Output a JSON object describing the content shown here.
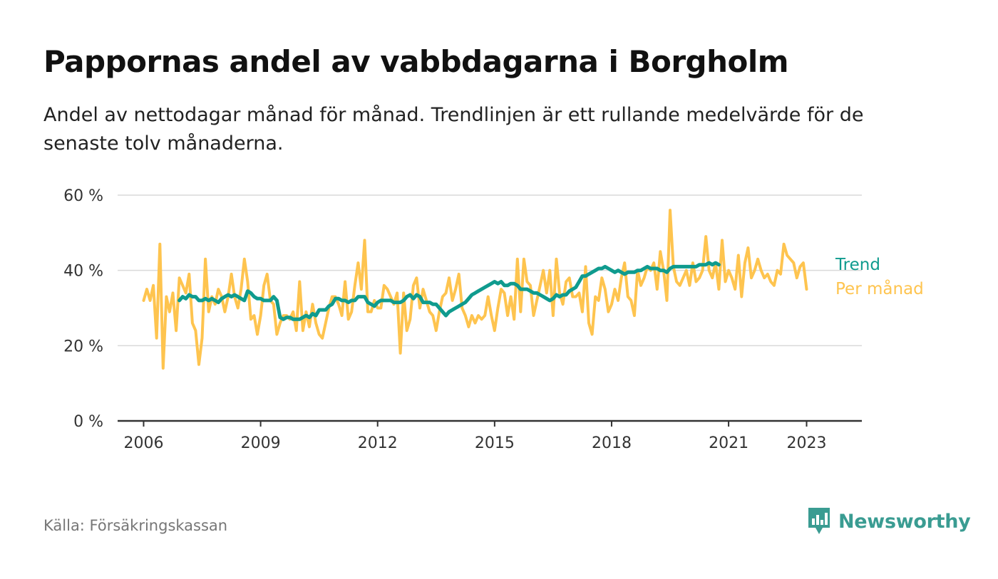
{
  "title": "Pappornas andel av vabbdagarna i Borgholm",
  "subtitle": "Andel av nettodagar månad för månad. Trendlinjen är ett rullande medelvärde för de senaste tolv månaderna.",
  "source": "Källa: Försäkringskassan",
  "brand": {
    "name": "Newsworthy",
    "color": "#3a9c92",
    "icon": "newsworthy-logo-icon"
  },
  "chart_data": {
    "type": "line",
    "x_ticks": [
      "2006",
      "2009",
      "2012",
      "2015",
      "2018",
      "2021",
      "2023"
    ],
    "y_ticks": [
      "0 %",
      "20 %",
      "40 %",
      "60 %"
    ],
    "ylim": [
      0,
      60
    ],
    "xlim": [
      "2005-05",
      "2024-06"
    ],
    "grid": true,
    "legend": "inline-right",
    "series": [
      {
        "name": "Per månad",
        "color": "#fec44f",
        "start": "2006-01",
        "values": [
          32,
          35,
          32,
          36,
          22,
          47,
          14,
          33,
          29,
          34,
          24,
          38,
          36,
          34,
          39,
          26,
          24,
          15,
          22,
          43,
          29,
          33,
          31,
          35,
          33,
          29,
          33,
          39,
          33,
          30,
          35,
          43,
          37,
          27,
          28,
          23,
          28,
          36,
          39,
          32,
          31,
          23,
          26,
          28,
          28,
          27,
          29,
          24,
          37,
          24,
          29,
          25,
          31,
          26,
          23,
          22,
          26,
          30,
          33,
          33,
          31,
          28,
          37,
          27,
          29,
          36,
          42,
          35,
          48,
          29,
          29,
          32,
          30,
          30,
          36,
          35,
          33,
          31,
          34,
          18,
          34,
          24,
          27,
          36,
          38,
          30,
          35,
          32,
          29,
          28,
          24,
          29,
          33,
          34,
          38,
          32,
          35,
          39,
          30,
          28,
          25,
          28,
          26,
          28,
          27,
          28,
          33,
          28,
          24,
          30,
          35,
          34,
          28,
          33,
          27,
          43,
          29,
          43,
          37,
          36,
          28,
          32,
          36,
          40,
          34,
          40,
          28,
          43,
          34,
          31,
          37,
          38,
          33,
          33,
          34,
          29,
          41,
          26,
          23,
          33,
          32,
          38,
          35,
          29,
          31,
          35,
          32,
          38,
          42,
          33,
          32,
          28,
          40,
          36,
          38,
          41,
          40,
          42,
          35,
          45,
          40,
          32,
          56,
          41,
          37,
          36,
          38,
          40,
          36,
          42,
          37,
          38,
          40,
          49,
          40,
          38,
          42,
          35,
          48,
          37,
          40,
          38,
          35,
          44,
          33,
          42,
          46,
          38,
          40,
          43,
          40,
          38,
          39,
          37,
          36,
          40,
          39,
          47,
          44,
          43,
          42,
          38,
          41,
          42,
          35
        ]
      },
      {
        "name": "Trend",
        "color": "#0f9b8e",
        "start": "2006-12",
        "values": [
          32,
          33,
          32.5,
          33.5,
          33,
          33,
          32,
          32,
          32.5,
          32,
          32.5,
          32,
          31.5,
          32.5,
          33,
          33.5,
          33,
          33.5,
          33,
          32.5,
          32,
          34.5,
          34,
          33,
          32.5,
          32.5,
          32,
          32,
          32,
          33,
          32,
          27.5,
          27,
          27.5,
          27.5,
          27,
          27,
          27,
          27.5,
          28,
          27.5,
          28.5,
          28,
          29.5,
          29.5,
          29.5,
          30.5,
          31,
          32.5,
          32.5,
          32,
          32,
          31.5,
          32,
          32,
          33,
          33,
          33,
          31.5,
          31,
          30.5,
          31.5,
          32,
          32,
          32,
          32,
          31.5,
          31.5,
          31.5,
          32,
          33,
          33.5,
          32.5,
          33.5,
          33,
          31.5,
          31.5,
          31.5,
          31,
          31,
          30,
          29,
          28,
          29,
          29.5,
          30,
          30.5,
          31,
          31.5,
          32.5,
          33.5,
          34,
          34.5,
          35,
          35.5,
          36,
          36.5,
          37,
          36.5,
          37,
          36,
          36,
          36.5,
          36.5,
          36,
          35,
          35,
          35,
          34.5,
          34,
          34,
          33.5,
          33,
          32.5,
          32,
          32.5,
          33.5,
          33,
          33.5,
          33.5,
          34.5,
          35,
          35.5,
          37,
          38.5,
          38.5,
          39,
          39.5,
          40,
          40.5,
          40.5,
          41,
          40.5,
          40,
          39.5,
          40,
          39.5,
          39,
          39.5,
          39.5,
          39.5,
          40,
          40,
          40.5,
          41,
          40.5,
          40.5,
          40.5,
          40,
          40,
          39.5,
          40.5,
          41,
          41,
          41,
          41,
          41,
          41,
          41,
          41,
          41.5,
          41.5,
          41.5,
          42,
          41.5,
          42,
          41.5
        ]
      }
    ]
  }
}
